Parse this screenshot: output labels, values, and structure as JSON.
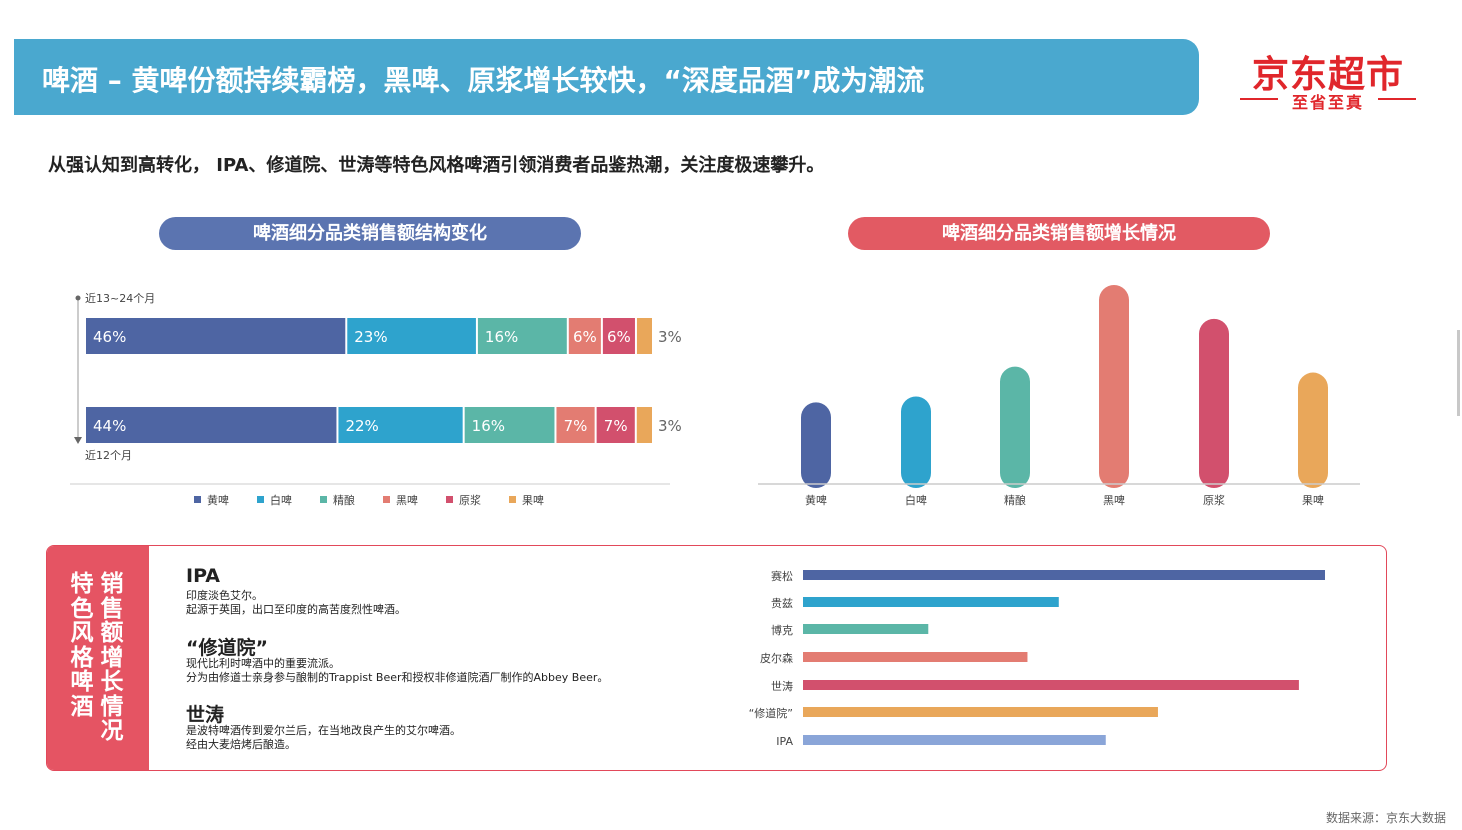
{
  "header": {
    "title": "啤酒 – 黄啤份额持续霸榜，黑啤、原浆增长较快，“深度品酒”成为潮流",
    "logo_main": "京东超市",
    "logo_sub": "至省至真",
    "subtitle": "从强认知到高转化， IPA、修道院、世涛等特色风格啤酒引领消费者品鉴热潮，关注度极速攀升。"
  },
  "panels": {
    "left_title": "啤酒细分品类销售额结构变化",
    "right_title": "啤酒细分品类销售额增长情况",
    "bottom_side_title": "特色风格啤酒销售额增长情况",
    "footnote": "数据来源：京东大数据"
  },
  "colors": {
    "banner": "#4aa8cf",
    "brand_red": "#e0262b",
    "huang": "#4e65a3",
    "bai": "#2ea3cd",
    "jing": "#5bb6a7",
    "hei": "#e37c72",
    "yuan": "#d2506d",
    "guo": "#e9a75a",
    "ipa": "#8aa5d8"
  },
  "descriptions": [
    {
      "heading": "IPA",
      "lines": [
        "印度淡色艾尔。",
        "起源于英国，出口至印度的高苦度烈性啤酒。"
      ]
    },
    {
      "heading": "“修道院”",
      "lines": [
        "现代比利时啤酒中的重要流派。",
        "分为由修道士亲身参与酿制的Trappist Beer和授权非修道院酒厂制作的Abbey Beer。"
      ]
    },
    {
      "heading": "世涛",
      "lines": [
        "是波特啤酒传到爱尔兰后，在当地改良产生的艾尔啤酒。",
        "经由大麦焙烤后酿造。"
      ]
    }
  ],
  "chart_data": [
    {
      "type": "bar",
      "orientation": "horizontal",
      "stacked": true,
      "title": "啤酒细分品类销售额结构变化",
      "categories": [
        "近13-24个月",
        "近12个月"
      ],
      "category_labels": [
        "近13~24个月",
        "近12个月"
      ],
      "legend_position": "bottom",
      "series": [
        {
          "name": "黄啤",
          "color": "#4e65a3",
          "values": [
            46,
            44
          ],
          "labels": [
            "46%",
            "44%"
          ]
        },
        {
          "name": "白啤",
          "color": "#2ea3cd",
          "values": [
            23,
            22
          ],
          "labels": [
            "23%",
            "22%"
          ]
        },
        {
          "name": "精酿",
          "color": "#5bb6a7",
          "values": [
            16,
            16
          ],
          "labels": [
            "16%",
            "16%"
          ]
        },
        {
          "name": "黑啤",
          "color": "#e37c72",
          "values": [
            6,
            7
          ],
          "labels": [
            "6%",
            "7%"
          ]
        },
        {
          "name": "原浆",
          "color": "#d2506d",
          "values": [
            6,
            7
          ],
          "labels": [
            "6%",
            "7%"
          ]
        },
        {
          "name": "果啤",
          "color": "#e9a75a",
          "values": [
            3,
            3
          ],
          "labels": [
            "3%",
            "3%"
          ]
        }
      ]
    },
    {
      "type": "bar",
      "title": "啤酒细分品类销售额增长情况",
      "categories": [
        "黄啤",
        "白啤",
        "精酿",
        "黑啤",
        "原浆",
        "果啤"
      ],
      "colors": [
        "#4e65a3",
        "#2ea3cd",
        "#5bb6a7",
        "#e37c72",
        "#d2506d",
        "#e9a75a"
      ],
      "values": [
        41,
        44,
        59,
        100,
        83,
        56
      ],
      "ylim": [
        0,
        100
      ],
      "grid": false
    },
    {
      "type": "bar",
      "orientation": "horizontal",
      "title": "",
      "categories": [
        "赛松",
        "贵兹",
        "博克",
        "皮尔森",
        "世涛",
        "“修道院”",
        "IPA"
      ],
      "colors": [
        "#4e65a3",
        "#2ea3cd",
        "#5bb6a7",
        "#e37c72",
        "#d2506d",
        "#e9a75a",
        "#8aa5d8"
      ],
      "values": [
        100,
        49,
        24,
        43,
        95,
        68,
        58
      ],
      "xlim": [
        0,
        100
      ],
      "grid": false
    }
  ]
}
